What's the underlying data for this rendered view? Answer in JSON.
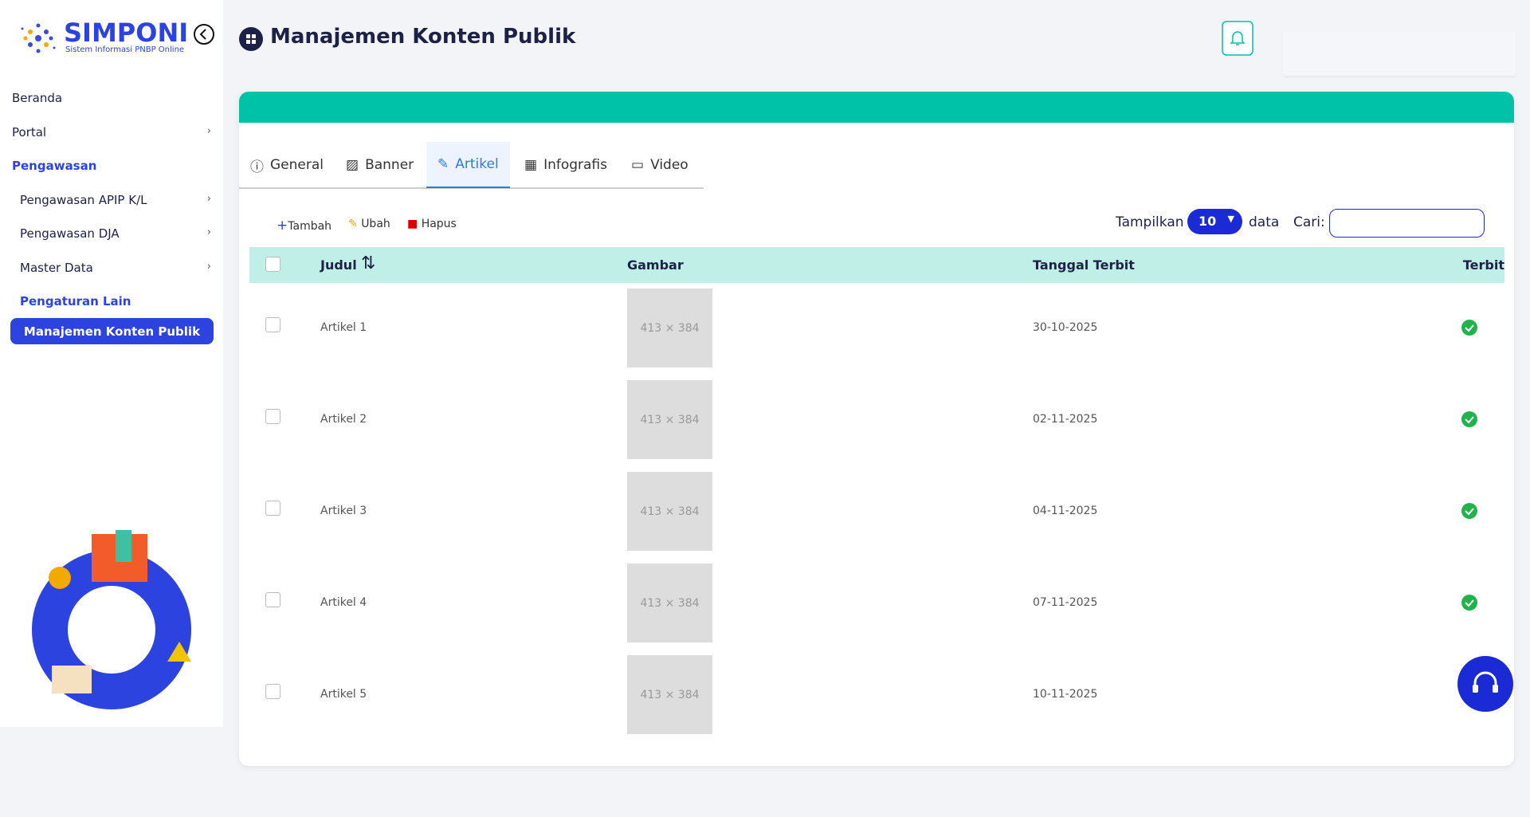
{
  "sidebar": {
    "brand": "SIMPONI",
    "tagline": "Sistem Informasi PNBP Online",
    "menu": [
      {
        "label": "Beranda"
      },
      {
        "label": "Portal"
      },
      {
        "label": "Pengawasan"
      },
      {
        "label": "Pengawasan APIP K/L"
      },
      {
        "label": "Pengawasan DJA"
      },
      {
        "label": "Master Data"
      },
      {
        "label": "Pengaturan Lain"
      },
      {
        "label": "Manajemen Konten Publik"
      }
    ]
  },
  "header": {
    "title": "Manajemen Konten Publik"
  },
  "tabs": [
    "General",
    "Banner",
    "Artikel",
    "Infografis",
    "Video"
  ],
  "toolbar": {
    "add": "Tambah",
    "edit": "Ubah",
    "delete": "Hapus",
    "show": "Tampilkan",
    "page_size": "10",
    "unit": "data",
    "search": "Cari:"
  },
  "table": {
    "headers": [
      "Judul",
      "Gambar",
      "Tanggal Terbit",
      "Terbit"
    ],
    "rows": [
      [
        "Artikel 1",
        "413 × 384",
        "30-10-2025"
      ],
      [
        "Artikel 2",
        "413 × 384",
        "02-11-2025"
      ],
      [
        "Artikel 3",
        "413 × 384",
        "04-11-2025"
      ],
      [
        "Artikel 4",
        "413 × 384",
        "07-11-2025"
      ],
      [
        "Artikel 5",
        "413 × 384",
        "10-11-2025"
      ]
    ]
  }
}
